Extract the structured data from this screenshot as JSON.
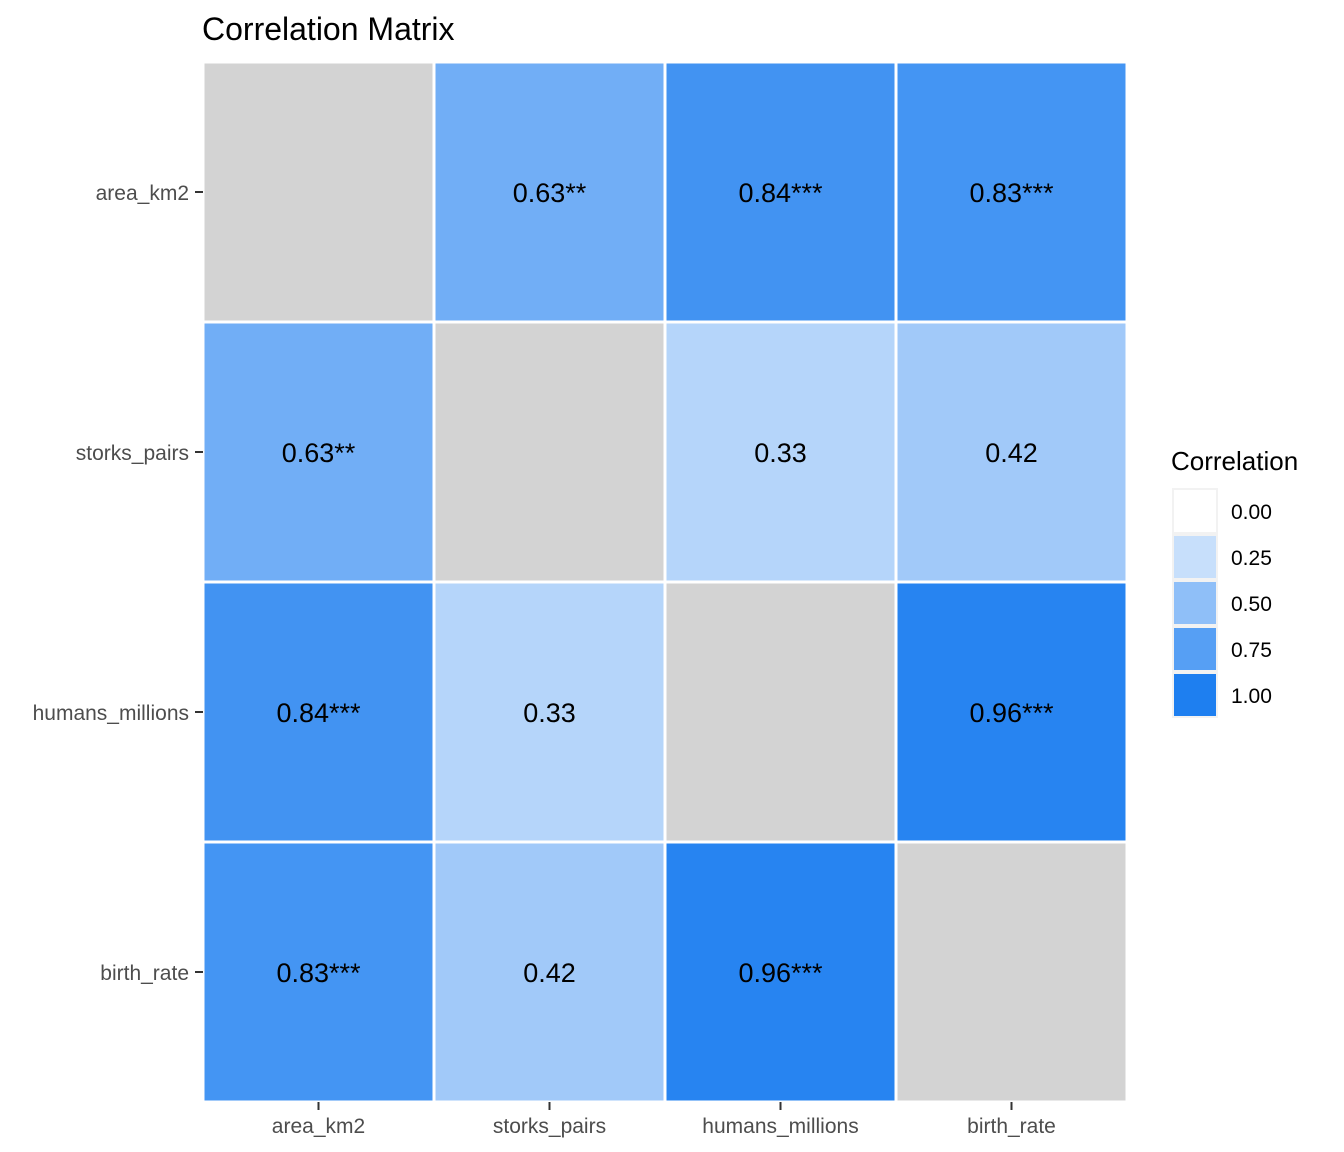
{
  "chart_data": {
    "type": "heatmap",
    "title": "Correlation Matrix",
    "variables": [
      "area_km2",
      "storks_pairs",
      "humans_millions",
      "birth_rate"
    ],
    "matrix": [
      [
        null,
        0.63,
        0.84,
        0.83
      ],
      [
        0.63,
        null,
        0.33,
        0.42
      ],
      [
        0.84,
        0.33,
        null,
        0.96
      ],
      [
        0.83,
        0.42,
        0.96,
        null
      ]
    ],
    "labels": [
      [
        "",
        "0.63**",
        "0.84***",
        "0.83***"
      ],
      [
        "0.63**",
        "",
        "0.33",
        "0.42"
      ],
      [
        "0.84***",
        "0.33",
        "",
        "0.96***"
      ],
      [
        "0.83***",
        "0.42",
        "0.96***",
        ""
      ]
    ],
    "diagonal_color": "#d3d3d3",
    "scale": {
      "low_color": "#ffffff",
      "high_color": "#1e7ff0",
      "limits": [
        0,
        1
      ]
    },
    "legend": {
      "title": "Correlation",
      "position": "right",
      "breaks": [
        0.0,
        0.25,
        0.5,
        0.75,
        1.0
      ],
      "break_labels": [
        "0.00",
        "0.25",
        "0.50",
        "0.75",
        "1.00"
      ]
    }
  }
}
